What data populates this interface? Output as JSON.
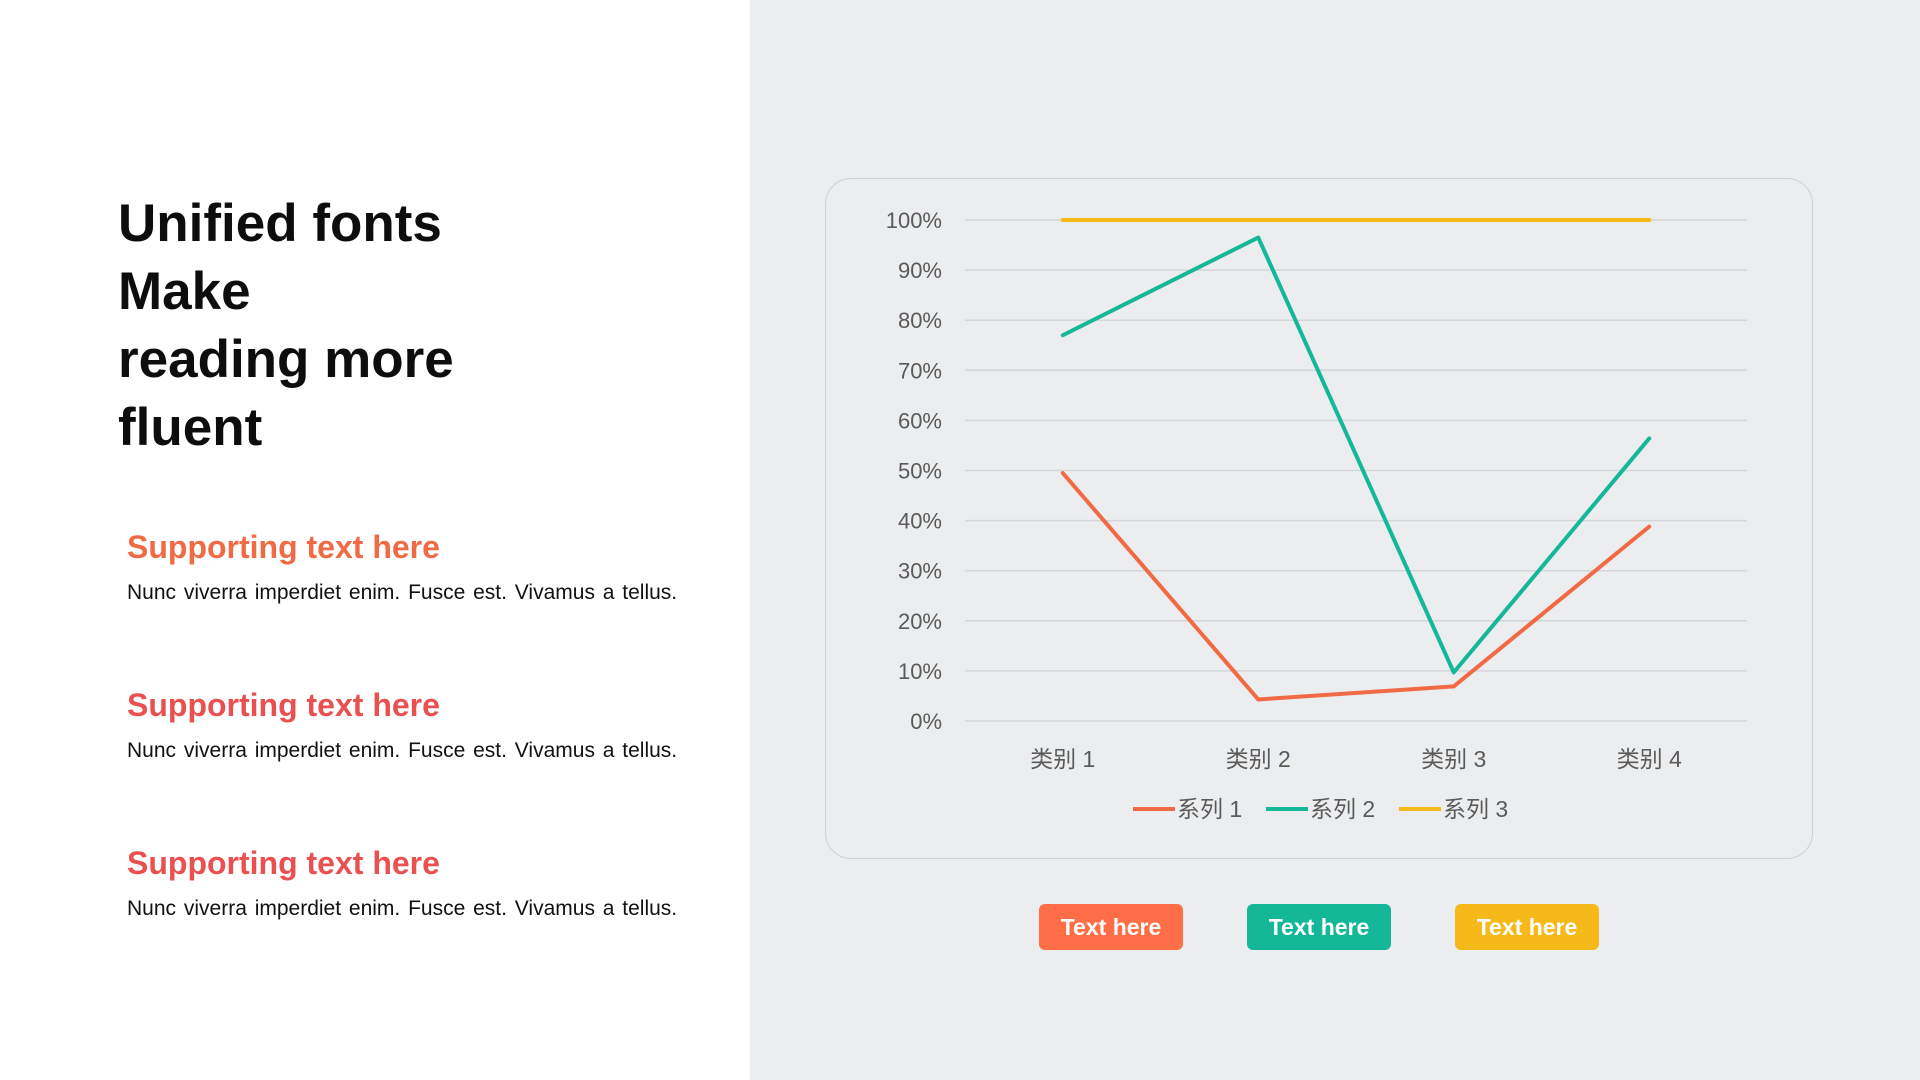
{
  "title": {
    "lines": [
      "Unified fonts",
      "Make",
      "reading more",
      "fluent"
    ]
  },
  "supporting": [
    {
      "heading": "Supporting text here",
      "body": "Nunc viverra imperdiet enim. Fusce est. Vivamus a tellus.",
      "color": "#f06b45"
    },
    {
      "heading": "Supporting text here",
      "body": "Nunc viverra imperdiet enim. Fusce est. Vivamus a tellus.",
      "color": "#eb5050"
    },
    {
      "heading": "Supporting text here",
      "body": "Nunc viverra imperdiet enim. Fusce est. Vivamus a tellus.",
      "color": "#eb5050"
    }
  ],
  "buttons": [
    {
      "label": "Text here",
      "color": "#ff6e46"
    },
    {
      "label": "Text here",
      "color": "#14b898"
    },
    {
      "label": "Text here",
      "color": "#f5b91a"
    }
  ],
  "chart_data": {
    "type": "line",
    "title": "",
    "xlabel": "",
    "ylabel": "",
    "categories": [
      "类别 1",
      "类别 2",
      "类别 3",
      "类别 4"
    ],
    "ylim": [
      0,
      1
    ],
    "y_ticks": [
      0,
      0.1,
      0.2,
      0.3,
      0.4,
      0.5,
      0.6,
      0.7,
      0.8,
      0.9,
      1.0
    ],
    "y_tick_labels": [
      "0%",
      "10%",
      "20%",
      "30%",
      "40%",
      "50%",
      "60%",
      "70%",
      "80%",
      "90%",
      "100%"
    ],
    "grid": true,
    "legend": "bottom",
    "series": [
      {
        "name": "系列 1",
        "values": [
          0.495,
          0.043,
          0.069,
          0.388
        ],
        "color": "#f06b45"
      },
      {
        "name": "系列 2",
        "values": [
          0.77,
          0.965,
          0.097,
          0.564
        ],
        "color": "#14b898"
      },
      {
        "name": "系列 3",
        "values": [
          1.0,
          1.0,
          1.0,
          1.0
        ],
        "color": "#f5b91a"
      }
    ]
  }
}
